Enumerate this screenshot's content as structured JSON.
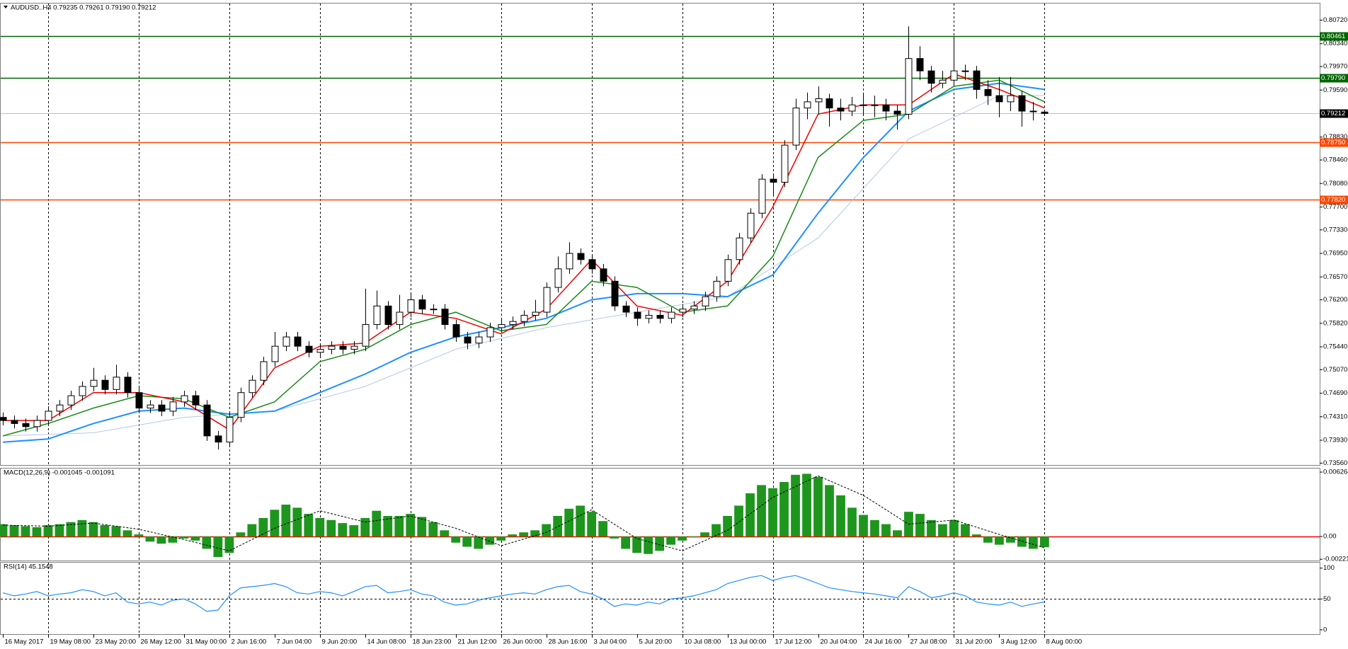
{
  "chart_data": [
    {
      "type": "candlestick",
      "title": "AUDUSD..H4 0.79235 0.79261 0.79190 0.79212",
      "open": [
        0.743,
        0.7425,
        0.742,
        0.7415,
        0.7425,
        0.744,
        0.745,
        0.7465,
        0.748,
        0.749,
        0.7475,
        0.7495,
        0.747,
        0.7445,
        0.745,
        0.744,
        0.7455,
        0.7465,
        0.745,
        0.74,
        0.739,
        0.743,
        0.747,
        0.749,
        0.752,
        0.7545,
        0.756,
        0.7545,
        0.7535,
        0.754,
        0.7545,
        0.754,
        0.7545,
        0.758,
        0.761,
        0.758,
        0.76,
        0.762,
        0.7605,
        0.7605,
        0.758,
        0.756,
        0.755,
        0.756,
        0.7575,
        0.758,
        0.7585,
        0.7595,
        0.76,
        0.764,
        0.767,
        0.7695,
        0.7685,
        0.767,
        0.765,
        0.761,
        0.76,
        0.759,
        0.7595,
        0.759,
        0.76,
        0.7605,
        0.761,
        0.7625,
        0.765,
        0.7685,
        0.772,
        0.776,
        0.7815,
        0.781,
        0.787,
        0.793,
        0.794,
        0.7945,
        0.793,
        0.7925,
        0.7935,
        0.7935,
        0.7935,
        0.7925,
        0.792,
        0.801,
        0.799,
        0.797,
        0.7975,
        0.799,
        0.799,
        0.796,
        0.795,
        0.794,
        0.795,
        0.7925,
        0.79235
      ],
      "high": [
        0.7438,
        0.7433,
        0.7428,
        0.7433,
        0.7448,
        0.7458,
        0.7473,
        0.7488,
        0.751,
        0.7498,
        0.7515,
        0.7503,
        0.7478,
        0.7458,
        0.7458,
        0.7463,
        0.7473,
        0.7473,
        0.7458,
        0.7408,
        0.7438,
        0.7478,
        0.7498,
        0.7528,
        0.7568,
        0.7568,
        0.7568,
        0.7553,
        0.7548,
        0.7553,
        0.7553,
        0.7553,
        0.7638,
        0.7635,
        0.7618,
        0.7628,
        0.763,
        0.7628,
        0.7613,
        0.7613,
        0.7588,
        0.7568,
        0.7568,
        0.7583,
        0.7588,
        0.7593,
        0.7603,
        0.762,
        0.7648,
        0.769,
        0.7713,
        0.7703,
        0.7693,
        0.7678,
        0.7658,
        0.7618,
        0.7608,
        0.7603,
        0.7603,
        0.7608,
        0.7613,
        0.7618,
        0.7633,
        0.7658,
        0.7693,
        0.7728,
        0.7768,
        0.7823,
        0.7823,
        0.7878,
        0.7945,
        0.7955,
        0.7965,
        0.7953,
        0.7945,
        0.7948,
        0.7955,
        0.795,
        0.7945,
        0.7935,
        0.8062,
        0.803,
        0.7998,
        0.799,
        0.8045,
        0.8,
        0.7998,
        0.7975,
        0.798,
        0.798,
        0.7958,
        0.794,
        0.79261
      ],
      "low": [
        0.7417,
        0.7412,
        0.7407,
        0.7407,
        0.7417,
        0.7432,
        0.7442,
        0.7457,
        0.7472,
        0.7467,
        0.7467,
        0.7462,
        0.7437,
        0.7437,
        0.7432,
        0.7432,
        0.7447,
        0.7442,
        0.7392,
        0.7378,
        0.7382,
        0.7422,
        0.7462,
        0.7482,
        0.7512,
        0.7537,
        0.7537,
        0.7527,
        0.7527,
        0.7532,
        0.7532,
        0.7532,
        0.7537,
        0.7572,
        0.7572,
        0.7572,
        0.7592,
        0.7597,
        0.7597,
        0.7572,
        0.7552,
        0.754,
        0.7542,
        0.7552,
        0.7567,
        0.7572,
        0.7577,
        0.7587,
        0.7592,
        0.7632,
        0.7662,
        0.7677,
        0.7662,
        0.7642,
        0.7602,
        0.7592,
        0.7578,
        0.7582,
        0.7582,
        0.7582,
        0.7592,
        0.7597,
        0.7602,
        0.7617,
        0.7642,
        0.7677,
        0.7712,
        0.7752,
        0.779,
        0.7802,
        0.7862,
        0.7912,
        0.792,
        0.79,
        0.791,
        0.7917,
        0.792,
        0.7915,
        0.791,
        0.7895,
        0.7912,
        0.7975,
        0.7955,
        0.7962,
        0.7967,
        0.7975,
        0.7945,
        0.7935,
        0.7915,
        0.7925,
        0.79,
        0.791,
        0.7919
      ],
      "close": [
        0.7425,
        0.742,
        0.7415,
        0.7425,
        0.744,
        0.745,
        0.7465,
        0.748,
        0.749,
        0.7475,
        0.7495,
        0.747,
        0.7445,
        0.745,
        0.744,
        0.7455,
        0.7465,
        0.745,
        0.74,
        0.739,
        0.743,
        0.747,
        0.749,
        0.752,
        0.7545,
        0.756,
        0.7545,
        0.7535,
        0.754,
        0.7545,
        0.754,
        0.7545,
        0.758,
        0.761,
        0.758,
        0.76,
        0.762,
        0.7605,
        0.7605,
        0.758,
        0.756,
        0.755,
        0.756,
        0.7575,
        0.758,
        0.7585,
        0.7595,
        0.76,
        0.764,
        0.767,
        0.7695,
        0.7685,
        0.767,
        0.765,
        0.761,
        0.76,
        0.759,
        0.7595,
        0.759,
        0.76,
        0.7605,
        0.761,
        0.7625,
        0.765,
        0.7685,
        0.772,
        0.776,
        0.7815,
        0.781,
        0.787,
        0.793,
        0.794,
        0.7945,
        0.793,
        0.7925,
        0.7935,
        0.7935,
        0.7935,
        0.7925,
        0.792,
        0.801,
        0.799,
        0.797,
        0.7975,
        0.799,
        0.799,
        0.796,
        0.795,
        0.794,
        0.795,
        0.7925,
        0.7925,
        0.79212
      ],
      "color_up": "#ffffff",
      "color_down": "#000000",
      "series": [
        {
          "color": "#b4c8e6",
          "width": 1,
          "x": [
            0,
            8,
            16,
            24,
            32,
            40,
            48,
            56,
            64,
            72,
            80,
            88,
            92
          ],
          "values": [
            0.74,
            0.7405,
            0.743,
            0.744,
            0.748,
            0.754,
            0.7575,
            0.76,
            0.7625,
            0.772,
            0.788,
            0.795,
            0.795
          ]
        },
        {
          "color": "#1e90ff",
          "width": 2,
          "x": [
            0,
            4,
            8,
            12,
            16,
            20,
            24,
            28,
            32,
            36,
            40,
            44,
            48,
            52,
            56,
            60,
            64,
            68,
            72,
            76,
            80,
            84,
            88,
            92
          ],
          "values": [
            0.739,
            0.7395,
            0.742,
            0.744,
            0.7445,
            0.7435,
            0.744,
            0.747,
            0.75,
            0.7535,
            0.756,
            0.7575,
            0.759,
            0.762,
            0.763,
            0.763,
            0.7625,
            0.766,
            0.776,
            0.785,
            0.7925,
            0.796,
            0.797,
            0.796
          ]
        },
        {
          "color": "#1a8a1a",
          "width": 1.5,
          "x": [
            0,
            4,
            8,
            12,
            16,
            20,
            24,
            28,
            32,
            36,
            40,
            44,
            48,
            52,
            56,
            60,
            64,
            68,
            72,
            76,
            80,
            84,
            88,
            92
          ],
          "values": [
            0.74,
            0.742,
            0.7445,
            0.7465,
            0.746,
            0.743,
            0.7455,
            0.752,
            0.754,
            0.758,
            0.76,
            0.757,
            0.758,
            0.765,
            0.764,
            0.76,
            0.761,
            0.769,
            0.785,
            0.791,
            0.792,
            0.7965,
            0.7975,
            0.794
          ]
        },
        {
          "color": "#ee0000",
          "width": 1.5,
          "x": [
            0,
            4,
            8,
            12,
            16,
            20,
            24,
            28,
            32,
            36,
            40,
            44,
            48,
            52,
            56,
            60,
            64,
            68,
            72,
            76,
            80,
            84,
            88,
            92
          ],
          "values": [
            0.7425,
            0.7425,
            0.747,
            0.747,
            0.7455,
            0.741,
            0.751,
            0.7545,
            0.755,
            0.76,
            0.759,
            0.7565,
            0.7605,
            0.7685,
            0.761,
            0.7595,
            0.765,
            0.777,
            0.792,
            0.7935,
            0.7935,
            0.7985,
            0.796,
            0.793
          ]
        }
      ],
      "hlines": [
        {
          "value": 0.80461,
          "label": "0.80461",
          "color": "#006400"
        },
        {
          "value": 0.7979,
          "label": "0.79790",
          "color": "#006400"
        },
        {
          "value": 0.7875,
          "label": "0.78750",
          "color": "#ff4500"
        },
        {
          "value": 0.7782,
          "label": "0.77820",
          "color": "#ff4500"
        },
        {
          "value": 0.79212,
          "label": "0.79212",
          "color": "#000000",
          "line_color": "#c0c0c0"
        }
      ],
      "xlim": [
        -0.25,
        116.3
      ],
      "ylim": [
        0.7353,
        0.81
      ],
      "yticks": [
        {
          "value": 0.8072,
          "label": "0.80720"
        },
        {
          "value": 0.8034,
          "label": "0.80340"
        },
        {
          "value": 0.7997,
          "label": "0.79970"
        },
        {
          "value": 0.7959,
          "label": "0.79590"
        },
        {
          "value": 0.7883,
          "label": "0.78830"
        },
        {
          "value": 0.7846,
          "label": "0.78460"
        },
        {
          "value": 0.7808,
          "label": "0.78080"
        },
        {
          "value": 0.777,
          "label": "0.77700"
        },
        {
          "value": 0.7733,
          "label": "0.77330"
        },
        {
          "value": 0.7695,
          "label": "0.76950"
        },
        {
          "value": 0.7657,
          "label": "0.76570"
        },
        {
          "value": 0.762,
          "label": "0.76200"
        },
        {
          "value": 0.7582,
          "label": "0.75820"
        },
        {
          "value": 0.7544,
          "label": "0.75440"
        },
        {
          "value": 0.7507,
          "label": "0.75070"
        },
        {
          "value": 0.7469,
          "label": "0.74690"
        },
        {
          "value": 0.7431,
          "label": "0.74310"
        },
        {
          "value": 0.7393,
          "label": "0.73930"
        },
        {
          "value": 0.7356,
          "label": "0.73560"
        }
      ],
      "grid": true
    },
    {
      "type": "macd",
      "title": "MACD(12,26,9) -0.001045 -0.001091",
      "values": [
        0.0012,
        0.0011,
        0.001,
        0.0009,
        0.0011,
        0.0012,
        0.0014,
        0.0016,
        0.0014,
        0.0011,
        0.001,
        0.0006,
        0.0002,
        -0.0005,
        -0.0007,
        -0.0006,
        -0.0002,
        -0.0004,
        -0.0012,
        -0.002,
        -0.0016,
        0.0004,
        0.0012,
        0.0018,
        0.0026,
        0.0031,
        0.0028,
        0.0022,
        0.0018,
        0.0016,
        0.0013,
        0.0011,
        0.0018,
        0.0025,
        0.002,
        0.002,
        0.0022,
        0.0019,
        0.0014,
        0.0006,
        -0.0006,
        -0.001,
        -0.0012,
        -0.0008,
        -0.0004,
        0.0002,
        0.0004,
        0.0006,
        0.0012,
        0.002,
        0.0027,
        0.003,
        0.0024,
        0.0015,
        -0.0002,
        -0.0012,
        -0.0016,
        -0.0017,
        -0.0014,
        -0.0008,
        -0.0004,
        -0.0001,
        0.0004,
        0.0012,
        0.002,
        0.003,
        0.0042,
        0.005,
        0.0047,
        0.0053,
        0.006,
        0.0061,
        0.0058,
        0.005,
        0.004,
        0.0028,
        0.0021,
        0.0016,
        0.0012,
        0.0006,
        0.0024,
        0.0022,
        0.0016,
        0.0012,
        0.0016,
        0.0012,
        0.0002,
        -0.0006,
        -0.0008,
        -0.0006,
        -0.001,
        -0.0012,
        -0.001045
      ],
      "color": "#1e961e",
      "series": [
        {
          "color": "#000000",
          "dash": true,
          "width": 1,
          "x": [
            0,
            4,
            8,
            12,
            16,
            20,
            24,
            28,
            32,
            36,
            40,
            44,
            48,
            52,
            56,
            60,
            64,
            68,
            72,
            76,
            80,
            84,
            88,
            92
          ],
          "values": [
            0.0011,
            0.001,
            0.0013,
            0.0007,
            -0.0003,
            -0.0014,
            0.0008,
            0.0025,
            0.0014,
            0.002,
            0.0008,
            -0.0009,
            0.0004,
            0.0026,
            -0.0002,
            -0.0014,
            0.0006,
            0.0038,
            0.0059,
            0.004,
            0.0012,
            0.0016,
            0.0002,
            -0.001091
          ]
        }
      ],
      "hlines": [
        {
          "value": 0,
          "color": "#ff0000"
        }
      ],
      "xlim": [
        -0.25,
        116.3
      ],
      "ylim": [
        -0.00234,
        0.00668
      ],
      "yticks": [
        0.006264,
        {
          "value": 0,
          "label": "0.00"
        },
        -0.002215
      ],
      "grid": true
    },
    {
      "type": "line",
      "title": "RSI(14) 45.1548",
      "values": [
        60,
        55,
        58,
        62,
        55,
        58,
        60,
        65,
        62,
        55,
        60,
        45,
        42,
        45,
        40,
        48,
        50,
        42,
        30,
        32,
        55,
        68,
        70,
        72,
        75,
        70,
        60,
        58,
        62,
        60,
        55,
        62,
        70,
        72,
        60,
        62,
        65,
        58,
        55,
        45,
        40,
        42,
        48,
        52,
        55,
        58,
        60,
        58,
        65,
        70,
        72,
        62,
        58,
        50,
        38,
        42,
        40,
        45,
        42,
        50,
        52,
        55,
        60,
        65,
        75,
        80,
        85,
        88,
        80,
        85,
        88,
        82,
        75,
        68,
        65,
        62,
        60,
        58,
        55,
        52,
        70,
        62,
        52,
        55,
        60,
        55,
        45,
        42,
        40,
        45,
        38,
        42,
        45.1548
      ],
      "color": "#1e90ff",
      "levels": [
        50
      ],
      "xlim": [
        -0.25,
        116.3
      ],
      "ylim": [
        -7,
        110
      ],
      "yticks": [
        100,
        50,
        0
      ],
      "xticks": [
        {
          "value": 0,
          "label": "16 May 2017"
        },
        {
          "value": 4,
          "label": "19 May 08:00"
        },
        {
          "value": 8,
          "label": "23 May 20:00"
        },
        {
          "value": 12,
          "label": "26 May 12:00"
        },
        {
          "value": 16,
          "label": "31 May 00:00"
        },
        {
          "value": 20,
          "label": "2 Jun 16:00"
        },
        {
          "value": 24,
          "label": "7 Jun 04:00"
        },
        {
          "value": 28,
          "label": "9 Jun 20:00"
        },
        {
          "value": 32,
          "label": "14 Jun 08:00"
        },
        {
          "value": 36,
          "label": "18 Jun 23:00"
        },
        {
          "value": 40,
          "label": "21 Jun 12:00"
        },
        {
          "value": 44,
          "label": "26 Jun 00:00"
        },
        {
          "value": 48,
          "label": "28 Jun 16:00"
        },
        {
          "value": 52,
          "label": "3 Jul 04:00"
        },
        {
          "value": 56,
          "label": "5 Jul 20:00"
        },
        {
          "value": 60,
          "label": "10 Jul 08:00"
        },
        {
          "value": 64,
          "label": "13 Jul 00:00"
        },
        {
          "value": 68,
          "label": "17 Jul 12:00"
        },
        {
          "value": 72,
          "label": "20 Jul 04:00"
        },
        {
          "value": 76,
          "label": "24 Jul 16:00"
        },
        {
          "value": 80,
          "label": "27 Jul 08:00"
        },
        {
          "value": 84,
          "label": "31 Jul 20:00"
        },
        {
          "value": 88,
          "label": "3 Aug 12:00"
        },
        {
          "value": 92,
          "label": "8 Aug 00:00"
        }
      ],
      "grid": true
    }
  ]
}
